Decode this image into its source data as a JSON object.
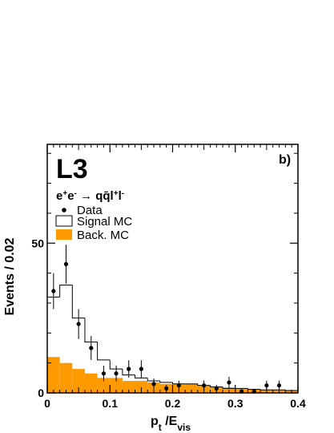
{
  "chart_data": {
    "type": "bar",
    "experiment": "L3",
    "panel_label": "b)",
    "process": "e+e- → qq̄l+l-",
    "xlabel": "pt /Evis",
    "ylabel": "Events / 0.02",
    "xlim": [
      0,
      0.4
    ],
    "ylim": [
      0,
      83
    ],
    "x_ticks": [
      "0",
      "0.1",
      "0.2",
      "0.3",
      "0.4"
    ],
    "y_ticks": [
      "0",
      "50"
    ],
    "bin_edges": [
      0,
      0.02,
      0.04,
      0.06,
      0.08,
      0.1,
      0.12,
      0.14,
      0.16,
      0.18,
      0.2,
      0.22,
      0.24,
      0.26,
      0.28,
      0.3,
      0.32,
      0.34,
      0.36,
      0.38,
      0.4
    ],
    "series": [
      {
        "name": "Data",
        "style": "points",
        "x": [
          0.01,
          0.03,
          0.05,
          0.07,
          0.09,
          0.11,
          0.13,
          0.15,
          0.17,
          0.19,
          0.21,
          0.25,
          0.27,
          0.29,
          0.31,
          0.33,
          0.35,
          0.37
        ],
        "values": [
          34,
          43,
          23,
          15,
          6.5,
          6.5,
          8,
          8,
          3,
          1.5,
          2.5,
          2.5,
          1.5,
          3.5,
          0.5,
          0.5,
          2.5,
          2.5
        ],
        "errors": [
          6,
          6.5,
          5,
          4,
          2.6,
          2.6,
          2.9,
          2.9,
          1.8,
          1.2,
          1.6,
          1.6,
          1.2,
          1.9,
          0.7,
          0.7,
          1.6,
          1.6
        ]
      },
      {
        "name": "Signal MC",
        "style": "open-histogram",
        "values": [
          32,
          36,
          25,
          17,
          11,
          8,
          6,
          5,
          4,
          3.5,
          3,
          3,
          2.5,
          2,
          1.5,
          1.5,
          1.2,
          1,
          1,
          0.8
        ]
      },
      {
        "name": "Back. MC",
        "style": "filled-histogram",
        "values": [
          12,
          10,
          8,
          6.5,
          5,
          5,
          4,
          4,
          3.5,
          3,
          3,
          3,
          2.5,
          2,
          1.8,
          1.5,
          1.2,
          1,
          1,
          0.8
        ]
      }
    ],
    "colors": {
      "background_mc": "#ff9900",
      "signal_mc": "#000000",
      "data": "#000000"
    },
    "legend_position": "top-left",
    "grid": false
  }
}
